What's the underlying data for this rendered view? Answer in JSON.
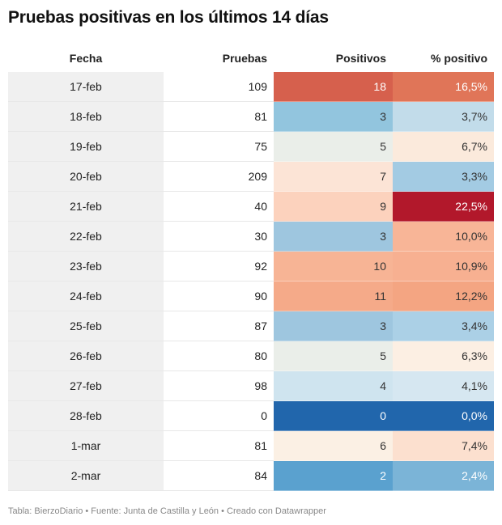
{
  "title": "Pruebas positivas en los últimos 14 días",
  "footer": "Tabla: BierzoDiario • Fuente: Junta de Castilla y León • Creado con Datawrapper",
  "chart_data": {
    "type": "table",
    "title": "Pruebas positivas en los últimos 14 días",
    "columns": [
      "Fecha",
      "Pruebas",
      "Positivos",
      "% positivo"
    ],
    "rows": [
      {
        "fecha": "17-feb",
        "pruebas": "109",
        "positivos": "18",
        "pct": "16,5%",
        "pos_color": "#d6604d",
        "pct_color": "#e07558"
      },
      {
        "fecha": "18-feb",
        "pruebas": "81",
        "positivos": "3",
        "pct": "3,7%",
        "pos_color": "#92c5de",
        "pct_color": "#c2dcea"
      },
      {
        "fecha": "19-feb",
        "pruebas": "75",
        "positivos": "5",
        "pct": "6,7%",
        "pos_color": "#eaeee9",
        "pct_color": "#fbeadc"
      },
      {
        "fecha": "20-feb",
        "pruebas": "209",
        "positivos": "7",
        "pct": "3,3%",
        "pos_color": "#fce4d6",
        "pct_color": "#a3cbe3"
      },
      {
        "fecha": "21-feb",
        "pruebas": "40",
        "positivos": "9",
        "pct": "22,5%",
        "pos_color": "#fcd2bd",
        "pct_color": "#b2182b"
      },
      {
        "fecha": "22-feb",
        "pruebas": "30",
        "positivos": "3",
        "pct": "10,0%",
        "pos_color": "#9ec6df",
        "pct_color": "#f8b597"
      },
      {
        "fecha": "23-feb",
        "pruebas": "92",
        "positivos": "10",
        "pct": "10,9%",
        "pos_color": "#f7b495",
        "pct_color": "#f7b091"
      },
      {
        "fecha": "24-feb",
        "pruebas": "90",
        "positivos": "11",
        "pct": "12,2%",
        "pos_color": "#f5aa89",
        "pct_color": "#f4a582"
      },
      {
        "fecha": "25-feb",
        "pruebas": "87",
        "positivos": "3",
        "pct": "3,4%",
        "pos_color": "#9ec6df",
        "pct_color": "#abd0e6"
      },
      {
        "fecha": "26-feb",
        "pruebas": "80",
        "positivos": "5",
        "pct": "6,3%",
        "pos_color": "#eaeee9",
        "pct_color": "#fcefe3"
      },
      {
        "fecha": "27-feb",
        "pruebas": "98",
        "positivos": "4",
        "pct": "4,1%",
        "pos_color": "#cfe4ef",
        "pct_color": "#d6e7f1"
      },
      {
        "fecha": "28-feb",
        "pruebas": "0",
        "positivos": "0",
        "pct": "0,0%",
        "pos_color": "#2166ac",
        "pct_color": "#2166ac"
      },
      {
        "fecha": "1-mar",
        "pruebas": "81",
        "positivos": "6",
        "pct": "7,4%",
        "pos_color": "#fbf0e4",
        "pct_color": "#fce0cf"
      },
      {
        "fecha": "2-mar",
        "pruebas": "84",
        "positivos": "2",
        "pct": "2,4%",
        "pos_color": "#5aa1cf",
        "pct_color": "#7bb4d7"
      }
    ]
  }
}
